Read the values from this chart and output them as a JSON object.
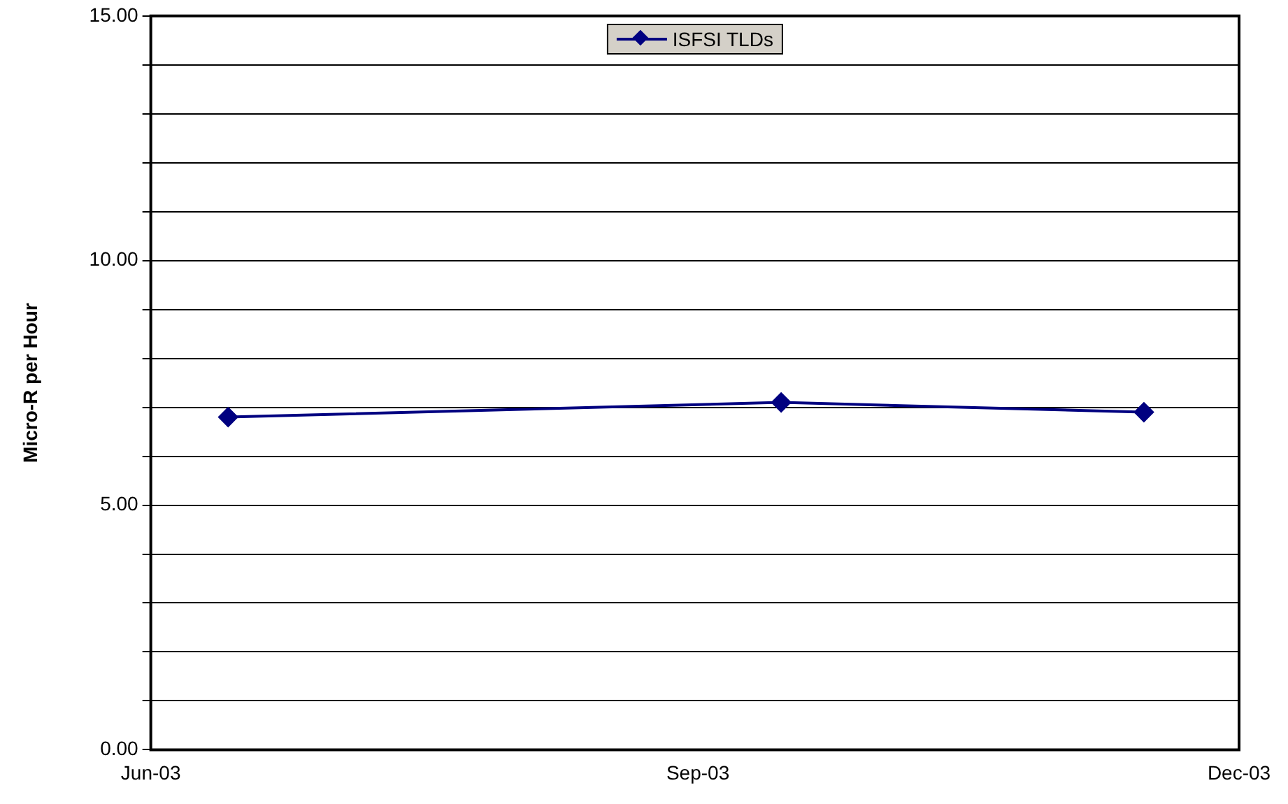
{
  "chart_data": {
    "type": "line",
    "ylabel": "Micro-R per Hour",
    "x": [
      "2003-06-14",
      "2003-09-15",
      "2003-11-15"
    ],
    "series": [
      {
        "name": "ISFSI TLDs",
        "color": "#000080",
        "values": [
          6.8,
          7.1,
          6.9
        ]
      }
    ],
    "xlim": [
      "2003-06-01",
      "2003-12-01"
    ],
    "xticks": [
      {
        "value": "2003-06-01",
        "label": "Jun-03"
      },
      {
        "value": "2003-09-01",
        "label": "Sep-03"
      },
      {
        "value": "2003-12-01",
        "label": "Dec-03"
      }
    ],
    "ylim": [
      0,
      15
    ],
    "yticks": [
      {
        "value": 0,
        "label": "0.00"
      },
      {
        "value": 1,
        "label": null
      },
      {
        "value": 2,
        "label": null
      },
      {
        "value": 3,
        "label": null
      },
      {
        "value": 4,
        "label": null
      },
      {
        "value": 5,
        "label": "5.00"
      },
      {
        "value": 6,
        "label": null
      },
      {
        "value": 7,
        "label": null
      },
      {
        "value": 8,
        "label": null
      },
      {
        "value": 9,
        "label": null
      },
      {
        "value": 10,
        "label": "10.00"
      },
      {
        "value": 11,
        "label": null
      },
      {
        "value": 12,
        "label": null
      },
      {
        "value": 13,
        "label": null
      },
      {
        "value": 14,
        "label": null
      },
      {
        "value": 15,
        "label": "15.00"
      }
    ],
    "grid": "y",
    "legend": "top",
    "marker": "diamond",
    "line_style": "solid"
  }
}
